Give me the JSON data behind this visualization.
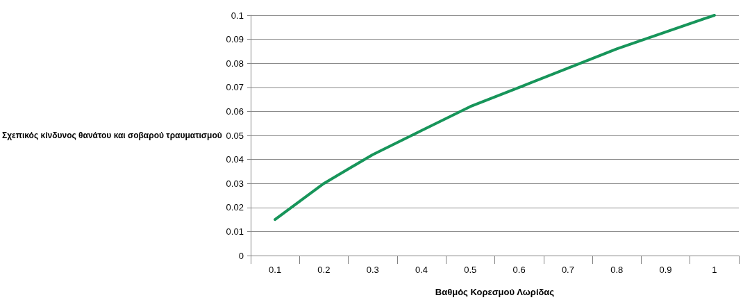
{
  "chart_data": {
    "type": "line",
    "xlabel": "Βαθμός Κορεσμού Λωρίδας",
    "ylabel": "Σχεπικός κίνδυνος θανάτου και σοβαρού τραυματισμού",
    "categories": [
      "0.1",
      "0.2",
      "0.3",
      "0.4",
      "0.5",
      "0.6",
      "0.7",
      "0.8",
      "0.9",
      "1"
    ],
    "series": [
      {
        "color": "#17955a",
        "values": [
          0.015,
          0.03,
          0.042,
          0.052,
          0.062,
          0.07,
          0.078,
          0.086,
          0.093,
          0.1
        ]
      }
    ],
    "ylim": [
      0,
      0.1
    ],
    "yticks": [
      0,
      0.01,
      0.02,
      0.03,
      0.04,
      0.05,
      0.06,
      0.07,
      0.08,
      0.09,
      0.1
    ],
    "grid": "y",
    "marker": "none",
    "line_style": "solid"
  }
}
